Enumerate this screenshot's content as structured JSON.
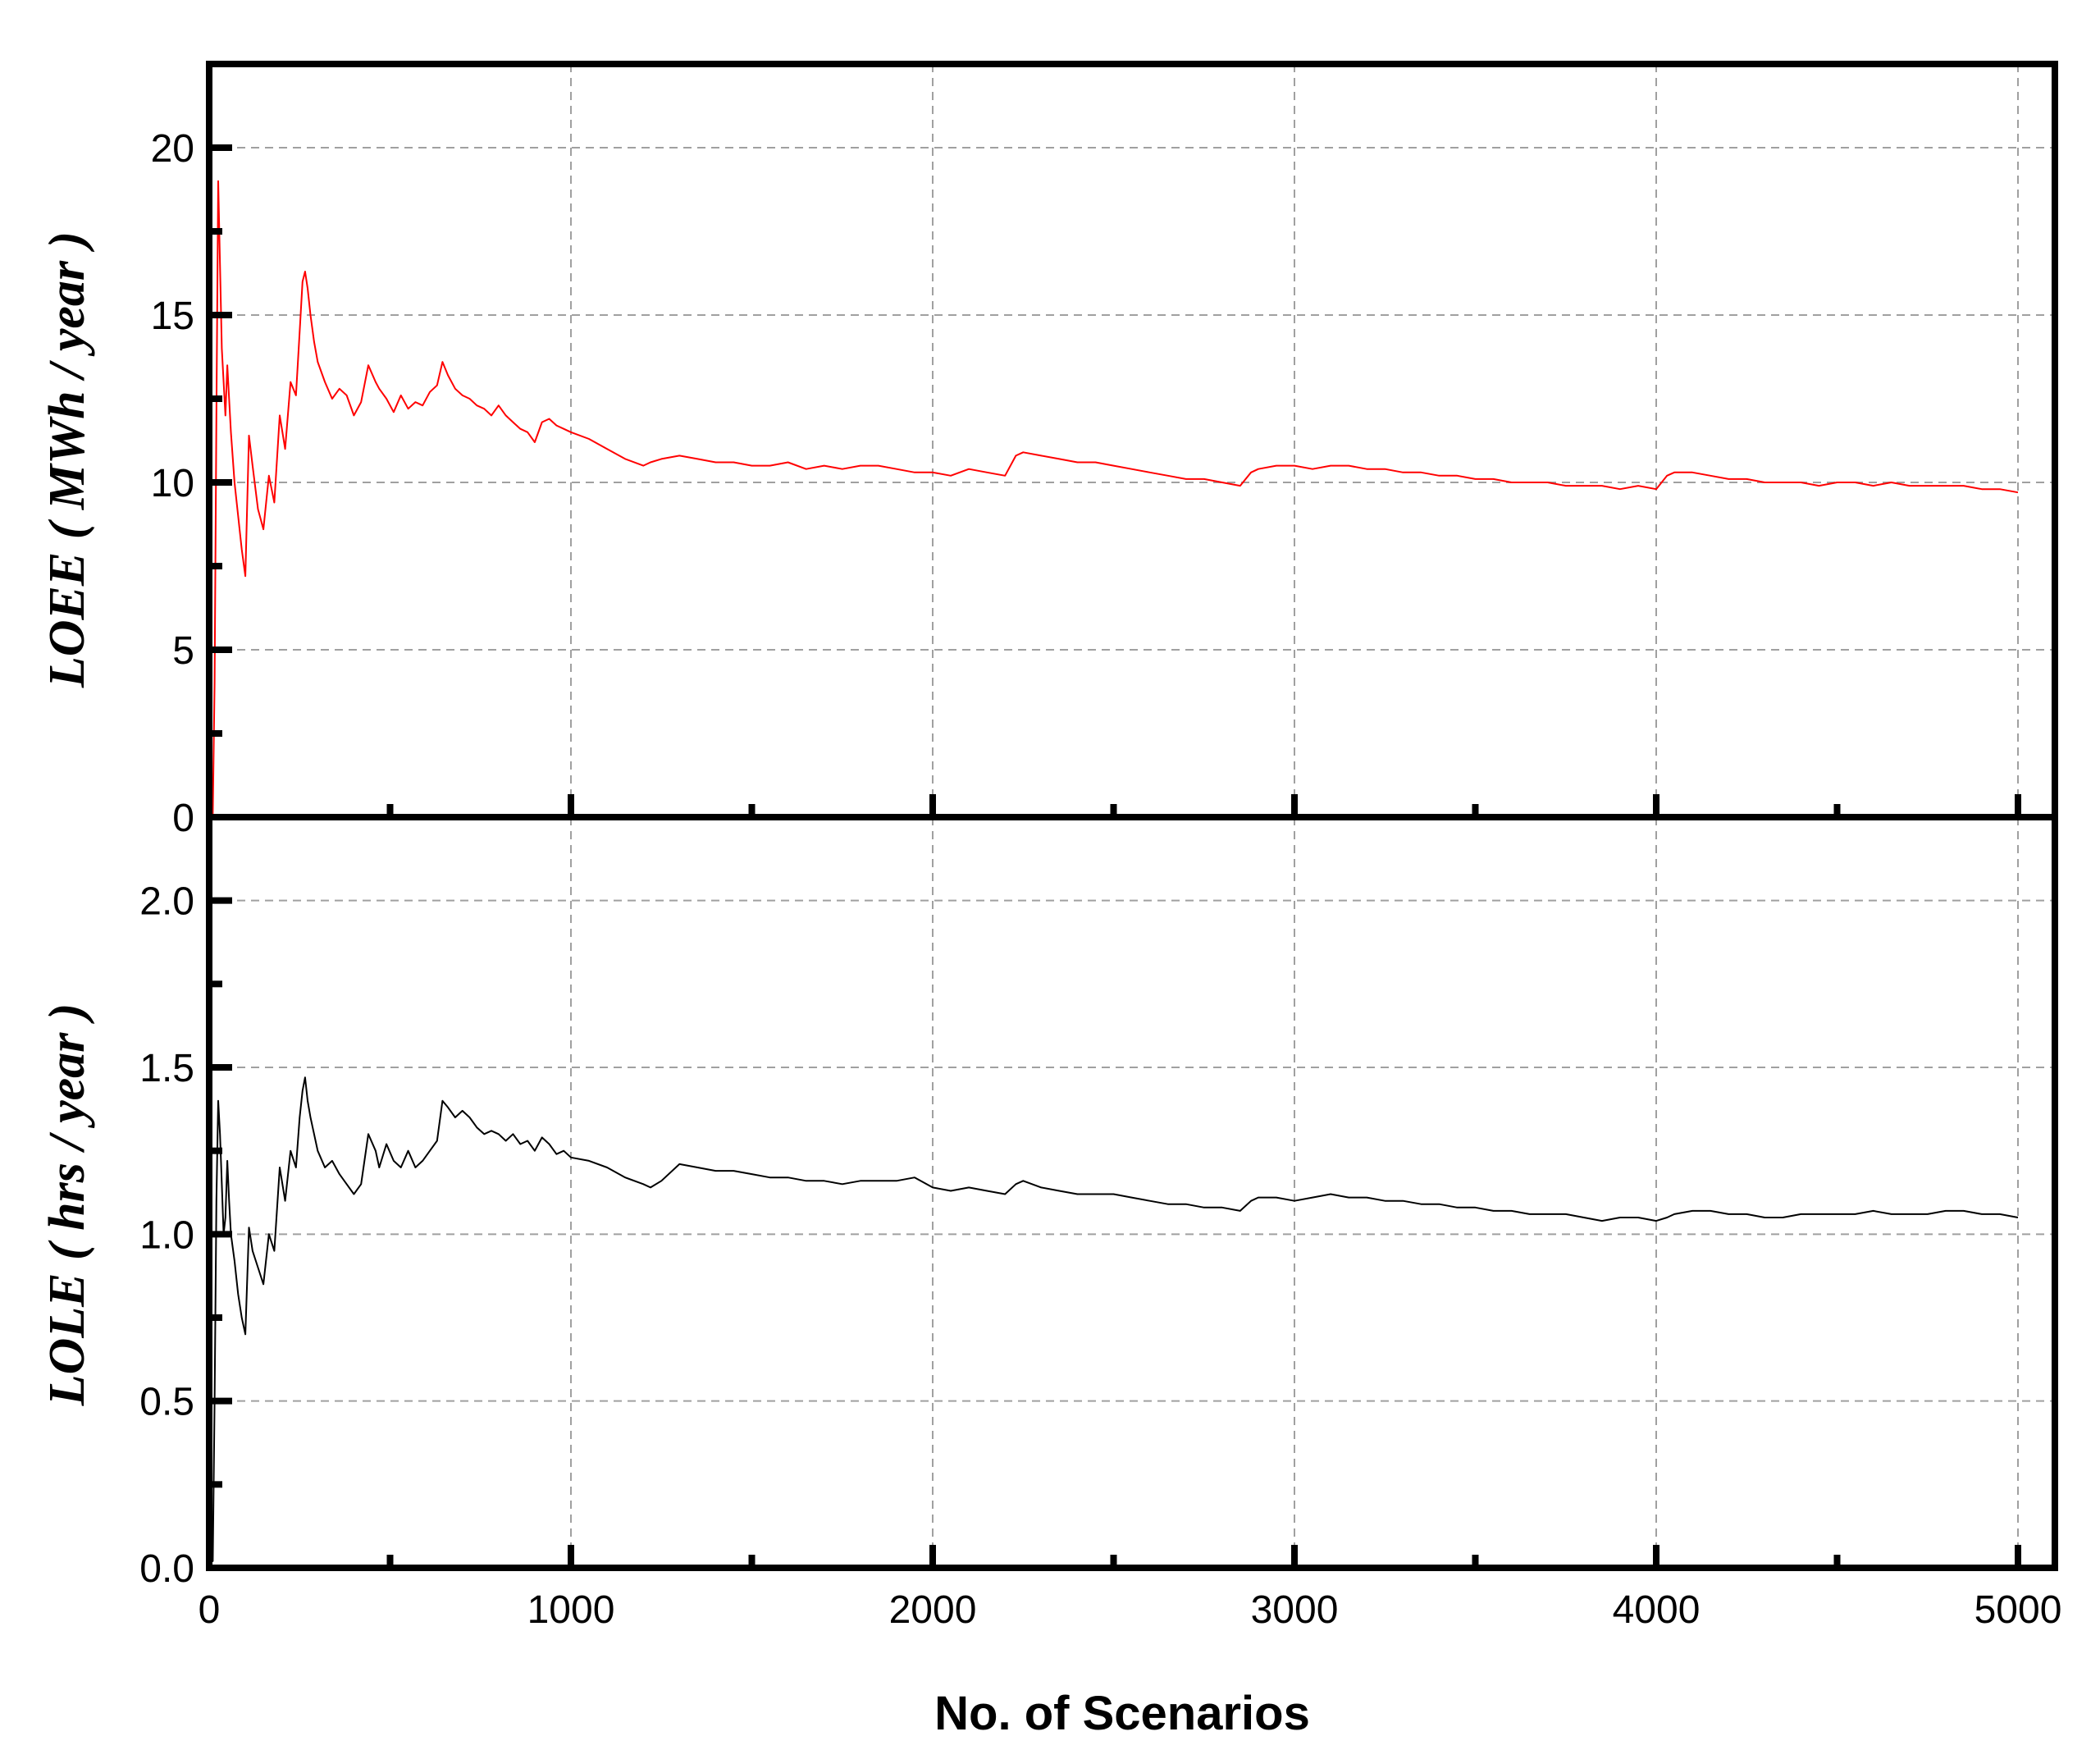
{
  "chart_data": {
    "type": "line",
    "xlabel": "No. of Scenarios",
    "xlim": [
      0,
      5000
    ],
    "xticks": [
      "0",
      "1000",
      "2000",
      "3000",
      "4000",
      "5000"
    ],
    "grid": true,
    "panels": [
      {
        "ylabel": "LOEE ( MWh / year )",
        "ylim": [
          0,
          22.5
        ],
        "yticks": [
          "0",
          "5",
          "10",
          "15",
          "20"
        ],
        "color": "#ff0000",
        "x": [
          0,
          5,
          10,
          15,
          20,
          25,
          30,
          35,
          40,
          45,
          50,
          55,
          60,
          70,
          80,
          90,
          100,
          110,
          120,
          135,
          150,
          165,
          180,
          195,
          210,
          225,
          240,
          250,
          258,
          265,
          272,
          280,
          290,
          300,
          320,
          340,
          360,
          380,
          400,
          420,
          440,
          460,
          470,
          490,
          510,
          530,
          550,
          570,
          590,
          610,
          630,
          645,
          660,
          680,
          700,
          720,
          740,
          760,
          780,
          800,
          820,
          840,
          860,
          880,
          900,
          920,
          940,
          960,
          980,
          1000,
          1050,
          1100,
          1150,
          1200,
          1220,
          1250,
          1300,
          1350,
          1400,
          1450,
          1500,
          1550,
          1600,
          1650,
          1700,
          1750,
          1800,
          1850,
          1900,
          1950,
          2000,
          2050,
          2100,
          2150,
          2200,
          2230,
          2250,
          2300,
          2350,
          2400,
          2450,
          2500,
          2550,
          2600,
          2650,
          2700,
          2750,
          2800,
          2850,
          2880,
          2900,
          2950,
          3000,
          3050,
          3100,
          3150,
          3200,
          3250,
          3300,
          3350,
          3400,
          3450,
          3500,
          3550,
          3600,
          3650,
          3700,
          3750,
          3800,
          3850,
          3900,
          3950,
          4000,
          4030,
          4050,
          4100,
          4150,
          4200,
          4250,
          4300,
          4350,
          4400,
          4450,
          4500,
          4550,
          4600,
          4650,
          4700,
          4750,
          4800,
          4850,
          4900,
          4950,
          5000
        ],
        "y": [
          1.3,
          0.3,
          0.1,
          4.0,
          12.0,
          19.0,
          16.5,
          14.0,
          13.0,
          12.0,
          13.5,
          12.5,
          11.5,
          10.0,
          9.0,
          8.0,
          7.2,
          11.4,
          10.5,
          9.2,
          8.6,
          10.2,
          9.4,
          12.0,
          11.0,
          13.0,
          12.6,
          14.5,
          16.0,
          16.3,
          15.8,
          15.0,
          14.2,
          13.6,
          13.0,
          12.5,
          12.8,
          12.6,
          12.0,
          12.4,
          13.5,
          13.0,
          12.8,
          12.5,
          12.1,
          12.6,
          12.2,
          12.4,
          12.3,
          12.7,
          12.9,
          13.6,
          13.2,
          12.8,
          12.6,
          12.5,
          12.3,
          12.2,
          12.0,
          12.3,
          12.0,
          11.8,
          11.6,
          11.5,
          11.2,
          11.8,
          11.9,
          11.7,
          11.6,
          11.5,
          11.3,
          11.0,
          10.7,
          10.5,
          10.6,
          10.7,
          10.8,
          10.7,
          10.6,
          10.6,
          10.5,
          10.5,
          10.6,
          10.4,
          10.5,
          10.4,
          10.5,
          10.5,
          10.4,
          10.3,
          10.3,
          10.2,
          10.4,
          10.3,
          10.2,
          10.8,
          10.9,
          10.8,
          10.7,
          10.6,
          10.6,
          10.5,
          10.4,
          10.3,
          10.2,
          10.1,
          10.1,
          10.0,
          9.9,
          10.3,
          10.4,
          10.5,
          10.5,
          10.4,
          10.5,
          10.5,
          10.4,
          10.4,
          10.3,
          10.3,
          10.2,
          10.2,
          10.1,
          10.1,
          10.0,
          10.0,
          10.0,
          9.9,
          9.9,
          9.9,
          9.8,
          9.9,
          9.8,
          10.2,
          10.3,
          10.3,
          10.2,
          10.1,
          10.1,
          10.0,
          10.0,
          10.0,
          9.9,
          10.0,
          10.0,
          9.9,
          10.0,
          9.9,
          9.9,
          9.9,
          9.9,
          9.8,
          9.8,
          9.7
        ]
      },
      {
        "ylabel": "LOLE ( hrs / year )",
        "ylim": [
          0,
          2.25
        ],
        "yticks": [
          "0.0",
          "0.5",
          "1.0",
          "1.5",
          "2.0"
        ],
        "color": "#000000",
        "x": [
          0,
          5,
          10,
          15,
          20,
          25,
          30,
          35,
          40,
          45,
          50,
          55,
          60,
          70,
          80,
          90,
          100,
          110,
          120,
          135,
          150,
          165,
          180,
          195,
          210,
          225,
          240,
          250,
          258,
          265,
          272,
          280,
          290,
          300,
          320,
          340,
          360,
          380,
          400,
          420,
          440,
          460,
          470,
          490,
          510,
          530,
          550,
          570,
          590,
          610,
          630,
          645,
          660,
          680,
          700,
          720,
          740,
          760,
          780,
          800,
          820,
          840,
          860,
          880,
          900,
          920,
          940,
          960,
          980,
          1000,
          1050,
          1100,
          1150,
          1200,
          1220,
          1250,
          1300,
          1350,
          1400,
          1450,
          1500,
          1550,
          1600,
          1650,
          1700,
          1750,
          1800,
          1850,
          1900,
          1950,
          2000,
          2050,
          2100,
          2150,
          2200,
          2230,
          2250,
          2300,
          2350,
          2400,
          2450,
          2500,
          2550,
          2600,
          2650,
          2700,
          2750,
          2800,
          2850,
          2880,
          2900,
          2950,
          3000,
          3050,
          3100,
          3150,
          3200,
          3250,
          3300,
          3350,
          3400,
          3450,
          3500,
          3550,
          3600,
          3650,
          3700,
          3750,
          3800,
          3850,
          3900,
          3950,
          4000,
          4030,
          4050,
          4100,
          4150,
          4200,
          4250,
          4300,
          4350,
          4400,
          4450,
          4500,
          4550,
          4600,
          4650,
          4700,
          4750,
          4800,
          4850,
          4900,
          4950,
          5000
        ],
        "y": [
          0.08,
          0.06,
          0.02,
          0.5,
          1.1,
          1.4,
          1.3,
          1.15,
          1.0,
          1.05,
          1.22,
          1.1,
          1.0,
          0.92,
          0.82,
          0.75,
          0.7,
          1.02,
          0.95,
          0.9,
          0.85,
          1.0,
          0.95,
          1.2,
          1.1,
          1.25,
          1.2,
          1.35,
          1.43,
          1.47,
          1.4,
          1.35,
          1.3,
          1.25,
          1.2,
          1.22,
          1.18,
          1.15,
          1.12,
          1.15,
          1.3,
          1.25,
          1.2,
          1.27,
          1.22,
          1.2,
          1.25,
          1.2,
          1.22,
          1.25,
          1.28,
          1.4,
          1.38,
          1.35,
          1.37,
          1.35,
          1.32,
          1.3,
          1.31,
          1.3,
          1.28,
          1.3,
          1.27,
          1.28,
          1.25,
          1.29,
          1.27,
          1.24,
          1.25,
          1.23,
          1.22,
          1.2,
          1.17,
          1.15,
          1.14,
          1.16,
          1.21,
          1.2,
          1.19,
          1.19,
          1.18,
          1.17,
          1.17,
          1.16,
          1.16,
          1.15,
          1.16,
          1.16,
          1.16,
          1.17,
          1.14,
          1.13,
          1.14,
          1.13,
          1.12,
          1.15,
          1.16,
          1.14,
          1.13,
          1.12,
          1.12,
          1.12,
          1.11,
          1.1,
          1.09,
          1.09,
          1.08,
          1.08,
          1.07,
          1.1,
          1.11,
          1.11,
          1.1,
          1.11,
          1.12,
          1.11,
          1.11,
          1.1,
          1.1,
          1.09,
          1.09,
          1.08,
          1.08,
          1.07,
          1.07,
          1.06,
          1.06,
          1.06,
          1.05,
          1.04,
          1.05,
          1.05,
          1.04,
          1.05,
          1.06,
          1.07,
          1.07,
          1.06,
          1.06,
          1.05,
          1.05,
          1.06,
          1.06,
          1.06,
          1.06,
          1.07,
          1.06,
          1.06,
          1.06,
          1.07,
          1.07,
          1.06,
          1.06,
          1.05
        ]
      }
    ]
  }
}
